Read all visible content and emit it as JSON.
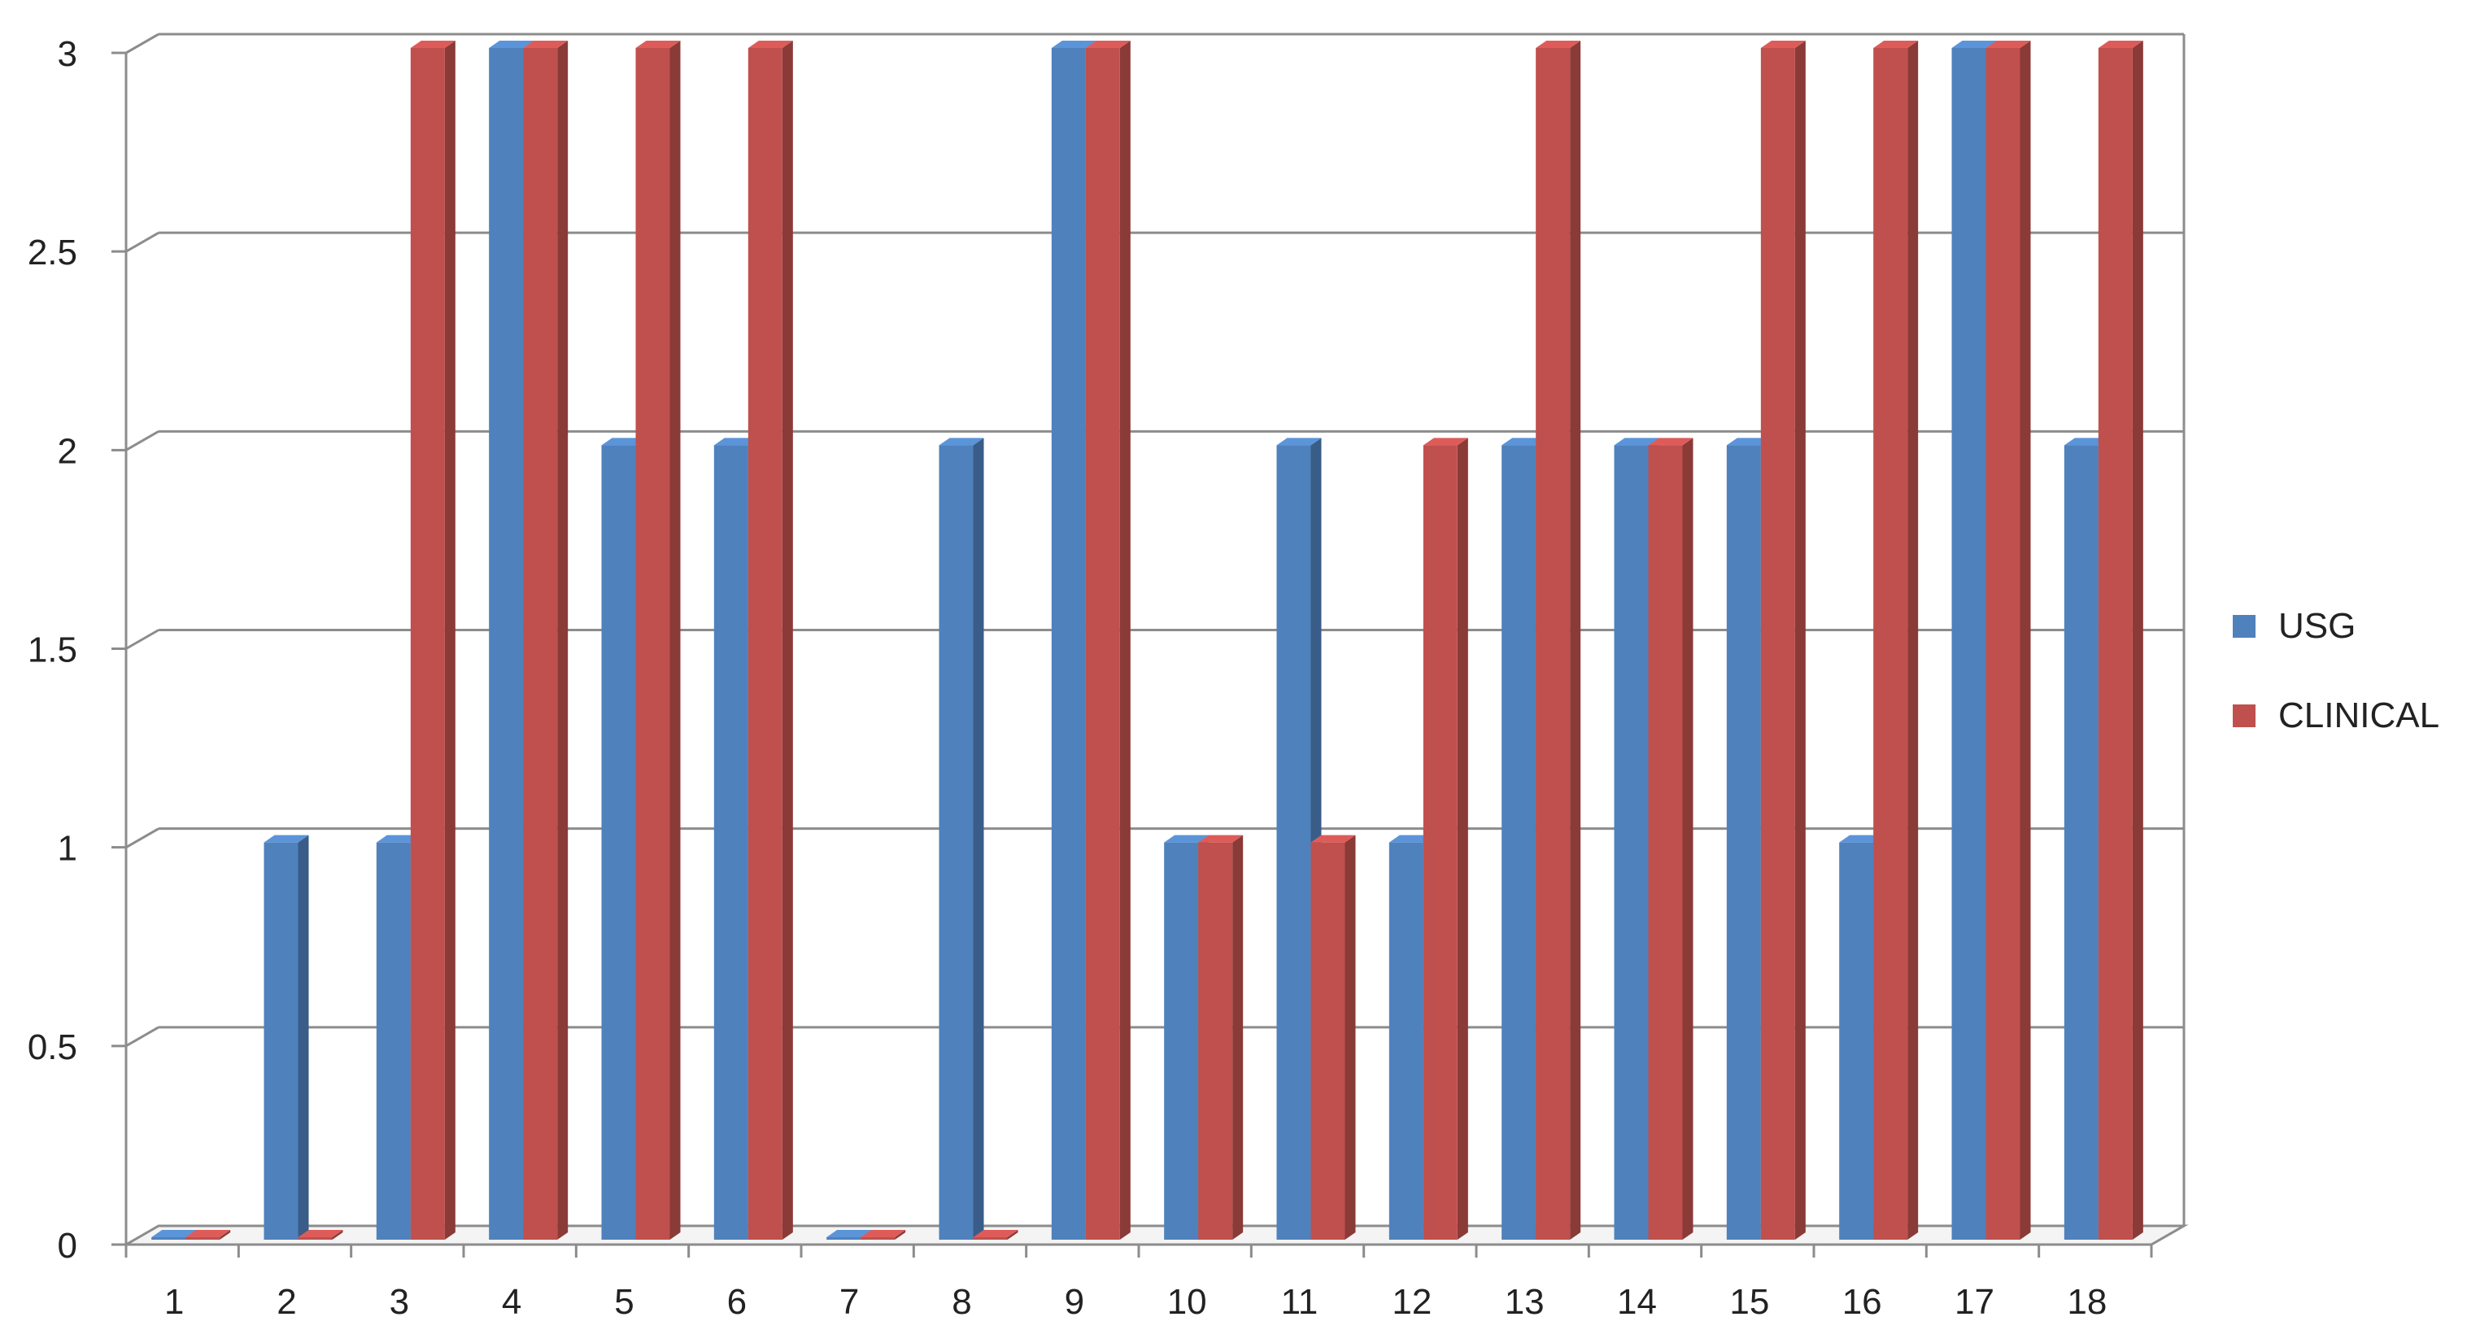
{
  "chart_data": {
    "type": "bar",
    "style": "3d-clustered-column",
    "categories": [
      "1",
      "2",
      "3",
      "4",
      "5",
      "6",
      "7",
      "8",
      "9",
      "10",
      "11",
      "12",
      "13",
      "14",
      "15",
      "16",
      "17",
      "18"
    ],
    "series": [
      {
        "name": "USG",
        "color": "#4f81bd",
        "values": [
          0,
          1,
          1,
          3,
          2,
          2,
          0,
          2,
          3,
          1,
          2,
          1,
          2,
          2,
          2,
          1,
          3,
          2
        ]
      },
      {
        "name": "CLINICAL",
        "color": "#c0504d",
        "values": [
          0,
          0,
          3,
          3,
          3,
          3,
          0,
          0,
          3,
          1,
          1,
          2,
          3,
          2,
          3,
          3,
          3,
          3
        ]
      }
    ],
    "y_ticks": [
      "0",
      "0.5",
      "1",
      "1.5",
      "2",
      "2.5",
      "3"
    ],
    "ylim": [
      0,
      3
    ],
    "grid": true,
    "legend_position": "right"
  }
}
